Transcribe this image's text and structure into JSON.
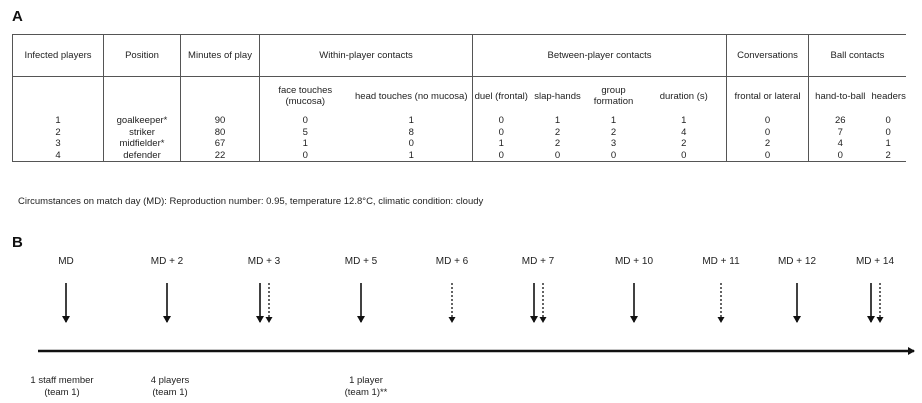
{
  "panel_a": {
    "label": "A"
  },
  "panel_b": {
    "label": "B"
  },
  "table": {
    "headers": {
      "infected": "Infected players",
      "position": "Position",
      "minutes": "Minutes of play",
      "within": "Within-player contacts",
      "between": "Between-player contacts",
      "conversations": "Conversations",
      "ball": "Ball contacts"
    },
    "subheaders": {
      "face": "face touches (mucosa)",
      "head": "head touches (no mucosa)",
      "duel": "duel (frontal)",
      "slap": "slap-hands",
      "group": "group formation",
      "duration": "duration (s)",
      "frontal": "frontal or lateral",
      "hand": "hand-to-ball",
      "headers": "headers"
    },
    "rows": [
      {
        "player": "1",
        "position": "goalkeeper*",
        "minutes": "90",
        "face": "0",
        "head": "1",
        "duel": "0",
        "slap": "1",
        "group": "1",
        "duration": "1",
        "conv": "0",
        "hand": "26",
        "headers": "0"
      },
      {
        "player": "2",
        "position": "striker",
        "minutes": "80",
        "face": "5",
        "head": "8",
        "duel": "0",
        "slap": "2",
        "group": "2",
        "duration": "4",
        "conv": "0",
        "hand": "7",
        "headers": "0"
      },
      {
        "player": "3",
        "position": "midfielder*",
        "minutes": "67",
        "face": "1",
        "head": "0",
        "duel": "1",
        "slap": "2",
        "group": "3",
        "duration": "2",
        "conv": "2",
        "hand": "4",
        "headers": "1"
      },
      {
        "player": "4",
        "position": "defender",
        "minutes": "22",
        "face": "0",
        "head": "1",
        "duel": "0",
        "slap": "0",
        "group": "0",
        "duration": "0",
        "conv": "0",
        "hand": "0",
        "headers": "2"
      }
    ]
  },
  "circumstances": "Circumstances on match day (MD): Reproduction number: 0.95, temperature 12.8°C, climatic condition: cloudy",
  "timeline": {
    "days": [
      {
        "label": "MD",
        "solid": true,
        "dashed": false
      },
      {
        "label": "MD + 2",
        "solid": true,
        "dashed": false
      },
      {
        "label": "MD + 3",
        "solid": true,
        "dashed": true
      },
      {
        "label": "MD + 5",
        "solid": true,
        "dashed": false
      },
      {
        "label": "MD + 6",
        "solid": false,
        "dashed": true
      },
      {
        "label": "MD + 7",
        "solid": true,
        "dashed": true
      },
      {
        "label": "MD + 10",
        "solid": true,
        "dashed": false
      },
      {
        "label": "MD + 11",
        "solid": false,
        "dashed": true
      },
      {
        "label": "MD + 12",
        "solid": true,
        "dashed": false
      },
      {
        "label": "MD + 14",
        "solid": true,
        "dashed": true
      }
    ],
    "notes": [
      {
        "line1": "1 staff member",
        "line2": "(team 1)"
      },
      {
        "line1": "4 players",
        "line2": "(team 1)"
      },
      {
        "line1": "1 player",
        "line2": "(team 1)**"
      }
    ]
  }
}
